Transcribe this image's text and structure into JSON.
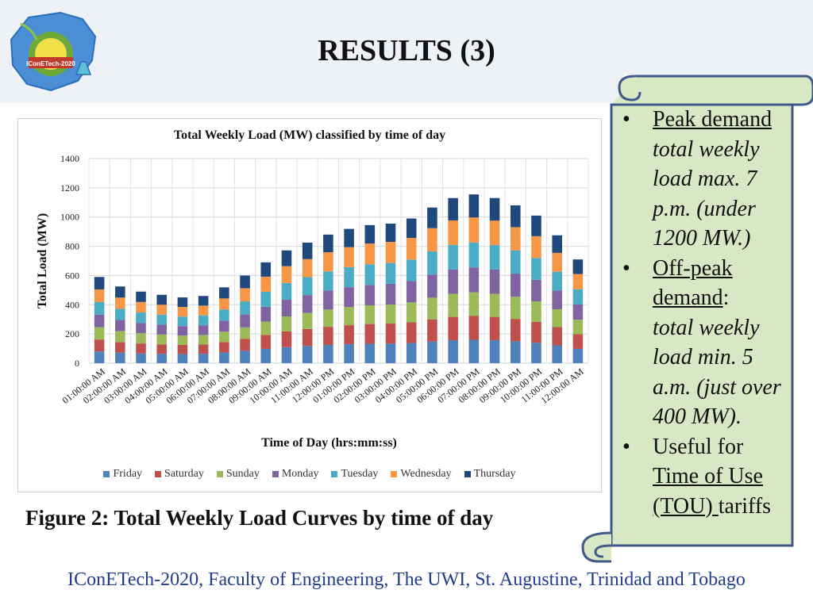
{
  "slide": {
    "title": "RESULTS (3)",
    "caption": "Figure 2: Total Weekly Load Curves by time of day",
    "footer": "IConETech-2020, Faculty of Engineering, The UWI, St. Augustine, Trinidad and Tobago",
    "logo_text": "IConETech-2020"
  },
  "notes": {
    "bullet_symbol": "•",
    "b1_head": "Peak demand",
    "b1_body": "total weekly load  max. 7 p.m. (under 1200 MW.)",
    "b2_head": "Off-peak demand",
    "b2_colon": ":",
    "b2_body": "total weekly load  min. 5 a.m. (just over 400 MW).",
    "b3_pre": "Useful for ",
    "b3_link": "Time of Use (TOU) ",
    "b3_post": "tariffs"
  },
  "colors": {
    "header_band": "#eef2f6",
    "scroll_fill": "#d9e8c4",
    "scroll_stroke": "#3f5a89",
    "footer_text": "#1f3d8a"
  },
  "chart_data": {
    "type": "bar",
    "stacked": true,
    "title": "Total Weekly Load (MW) classified by time of day",
    "xlabel": "Time of Day (hrs:mm:ss)",
    "ylabel": "Total  Load (MW)",
    "ylim": [
      0,
      1400
    ],
    "yticks": [
      0,
      200,
      400,
      600,
      800,
      1000,
      1200,
      1400
    ],
    "grid": true,
    "legend_position": "bottom",
    "categories": [
      "01:00:00 AM",
      "02:00:00 AM",
      "03:00:00 AM",
      "04:00:00 AM",
      "05:00:00 AM",
      "06:00:00 AM",
      "07:00:00 AM",
      "08:00:00 AM",
      "09:00:00 AM",
      "10:00:00 AM",
      "11:00:00 AM",
      "12:00:00 PM",
      "01:00:00 PM",
      "02:00:00 PM",
      "03:00:00 PM",
      "04:00:00 PM",
      "05:00:00 PM",
      "06:00:00 PM",
      "07:00:00 PM",
      "08:00:00 PM",
      "09:00:00 PM",
      "10:00:00 PM",
      "11:00:00 PM",
      "12:00:00 AM"
    ],
    "series": [
      {
        "name": "Friday",
        "color": "#4f81bd",
        "values": [
          80,
          72,
          67,
          64,
          62,
          64,
          73,
          85,
          98,
          110,
          118,
          125,
          130,
          133,
          134,
          138,
          148,
          157,
          160,
          157,
          150,
          140,
          122,
          98
        ]
      },
      {
        "name": "Saturday",
        "color": "#c0504d",
        "values": [
          82,
          73,
          68,
          65,
          63,
          64,
          72,
          82,
          96,
          108,
          116,
          124,
          130,
          135,
          137,
          142,
          152,
          160,
          163,
          160,
          153,
          143,
          125,
          100
        ]
      },
      {
        "name": "Sunday",
        "color": "#9bbb59",
        "values": [
          84,
          75,
          70,
          67,
          64,
          65,
          70,
          78,
          90,
          102,
          110,
          118,
          124,
          128,
          130,
          136,
          148,
          158,
          162,
          158,
          152,
          140,
          122,
          100
        ]
      },
      {
        "name": "Monday",
        "color": "#8064a2",
        "values": [
          86,
          76,
          71,
          68,
          65,
          67,
          76,
          88,
          102,
          114,
          122,
          130,
          136,
          140,
          142,
          146,
          158,
          166,
          170,
          166,
          158,
          148,
          128,
          104
        ]
      },
      {
        "name": "Tuesday",
        "color": "#4bacc6",
        "values": [
          86,
          76,
          71,
          68,
          65,
          67,
          76,
          90,
          103,
          115,
          123,
          131,
          137,
          141,
          143,
          147,
          159,
          168,
          171,
          167,
          159,
          149,
          129,
          104
        ]
      },
      {
        "name": "Wednesday",
        "color": "#f79646",
        "values": [
          87,
          77,
          72,
          68,
          66,
          67,
          76,
          90,
          103,
          115,
          123,
          131,
          137,
          142,
          144,
          148,
          159,
          168,
          171,
          167,
          159,
          149,
          129,
          104
        ]
      },
      {
        "name": "Thursday",
        "color": "#1f497d",
        "values": [
          85,
          76,
          71,
          68,
          65,
          66,
          76,
          87,
          98,
          108,
          113,
          121,
          125,
          126,
          125,
          133,
          141,
          153,
          158,
          155,
          149,
          141,
          120,
          100
        ]
      }
    ]
  }
}
